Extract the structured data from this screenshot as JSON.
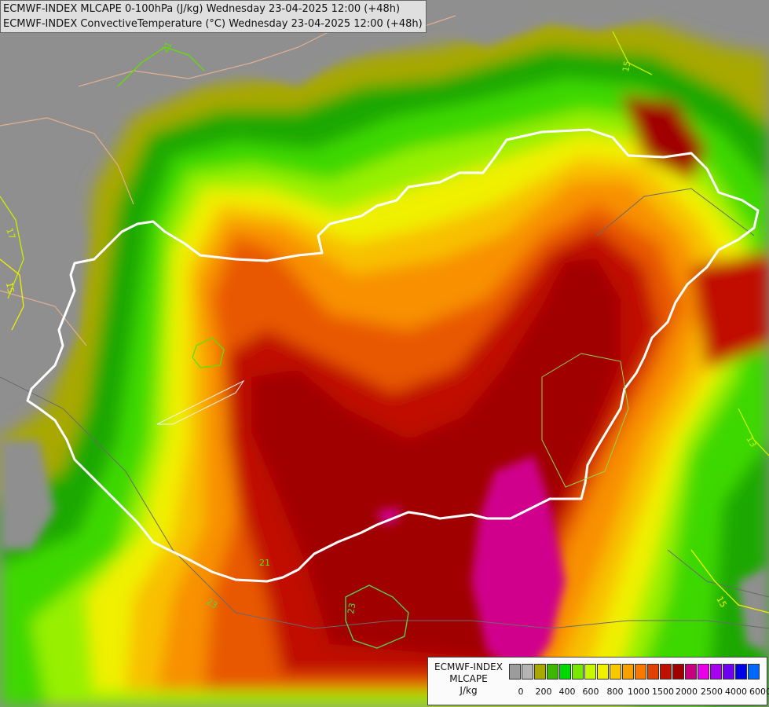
{
  "header": {
    "line1": "ECMWF-INDEX MLCAPE 0-100hPa (J/kg) Wednesday 23-04-2025 12:00 (+48h)",
    "line2": "ECMWF-INDEX ConvectiveTemperature (°C) Wednesday 23-04-2025 12:00 (+48h)"
  },
  "legend": {
    "title_line1": "ECMWF-INDEX",
    "title_line2": "MLCAPE",
    "unit": "J/kg",
    "colors": [
      "#9c9c9c",
      "#b4b4b4",
      "#a8a800",
      "#3cb800",
      "#00d800",
      "#78e800",
      "#c8f800",
      "#f0f000",
      "#f8c800",
      "#f8a000",
      "#f87800",
      "#e04000",
      "#c01000",
      "#a00000",
      "#c80080",
      "#e800e8",
      "#a800f0",
      "#7000f0",
      "#0000e8",
      "#0068f8",
      "#00c0f8",
      "#80f0f8",
      "#ffffff"
    ],
    "ticks": [
      "0",
      "200",
      "400",
      "600",
      "800",
      "1000",
      "1500",
      "2000",
      "2500",
      "4000",
      "6000"
    ]
  },
  "map_labels": {
    "contour_17": "17",
    "contour_15_left": "15",
    "contour_21_top": "21",
    "contour_21_bottom": "21",
    "contour_23_a": "23",
    "contour_23_b": "23",
    "contour_15_right": "15",
    "contour_13": "13",
    "contour_15_top": "15"
  }
}
